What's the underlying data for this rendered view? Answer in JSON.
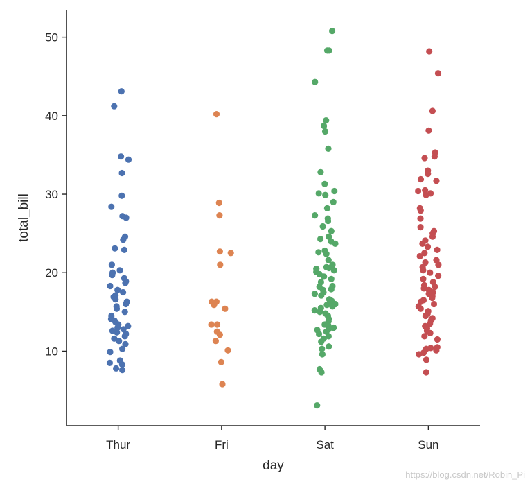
{
  "chart_data": {
    "type": "scatter",
    "subtype": "strip",
    "xlabel": "day",
    "ylabel": "total_bill",
    "ylim": [
      0.5,
      53.5
    ],
    "yticks": [
      10,
      20,
      30,
      40,
      50
    ],
    "grid": false,
    "legend": "none",
    "categories": [
      "Thur",
      "Fri",
      "Sat",
      "Sun"
    ],
    "colors": [
      "#4c72b0",
      "#dd8452",
      "#55a868",
      "#c44e52"
    ],
    "series": [
      {
        "values": [
          43.1,
          41.2,
          34.8,
          34.4,
          32.7,
          29.8,
          28.4,
          27.0,
          27.2,
          24.6,
          24.2,
          23.1,
          22.9,
          21.0,
          20.3,
          20.0,
          19.7,
          19.3,
          18.9,
          18.7,
          18.3,
          17.8,
          17.5,
          17.1,
          16.9,
          16.6,
          16.3,
          16.0,
          15.7,
          15.4,
          15.0,
          14.5,
          14.1,
          13.9,
          13.7,
          13.4,
          13.2,
          13.0,
          12.8,
          12.6,
          12.4,
          12.2,
          11.9,
          11.6,
          11.3,
          10.9,
          10.3,
          9.9,
          8.8,
          8.5,
          8.3,
          7.8,
          7.6
        ]
      },
      {
        "values": [
          40.2,
          28.9,
          27.3,
          22.7,
          22.5,
          21.0,
          16.3,
          16.3,
          15.9,
          15.4,
          13.4,
          13.4,
          12.5,
          12.1,
          11.3,
          10.1,
          8.6,
          5.8
        ]
      },
      {
        "values": [
          50.8,
          48.3,
          48.3,
          44.3,
          39.4,
          38.7,
          38.0,
          35.8,
          32.8,
          31.3,
          30.4,
          30.1,
          29.9,
          29.0,
          28.2,
          27.3,
          26.9,
          26.6,
          25.9,
          25.3,
          24.6,
          24.3,
          24.0,
          23.7,
          22.8,
          22.6,
          22.4,
          21.6,
          21.0,
          20.7,
          20.6,
          20.5,
          20.3,
          20.1,
          19.8,
          19.5,
          19.2,
          18.8,
          18.3,
          18.2,
          17.9,
          17.8,
          17.5,
          17.3,
          17.1,
          16.6,
          16.4,
          16.3,
          16.0,
          15.9,
          15.7,
          15.5,
          15.2,
          15.0,
          14.8,
          14.5,
          14.1,
          13.8,
          13.4,
          13.3,
          13.0,
          12.8,
          12.7,
          12.5,
          12.2,
          11.9,
          11.6,
          11.2,
          10.6,
          10.3,
          9.6,
          7.7,
          7.3,
          3.1
        ]
      },
      {
        "values": [
          48.2,
          45.4,
          40.6,
          38.1,
          35.3,
          34.8,
          34.6,
          33.0,
          32.6,
          31.9,
          31.7,
          30.5,
          30.4,
          30.1,
          29.9,
          28.2,
          27.9,
          26.9,
          25.8,
          25.3,
          25.0,
          24.6,
          24.1,
          23.7,
          23.3,
          22.9,
          22.5,
          22.1,
          21.6,
          21.3,
          21.0,
          20.7,
          20.3,
          20.0,
          19.6,
          19.2,
          18.8,
          18.4,
          18.2,
          18.0,
          17.8,
          17.5,
          17.3,
          17.0,
          16.8,
          16.5,
          16.3,
          16.0,
          15.7,
          15.4,
          15.1,
          14.8,
          14.5,
          14.2,
          13.9,
          13.5,
          13.2,
          12.9,
          12.6,
          12.3,
          11.9,
          11.5,
          10.5,
          10.4,
          10.3,
          10.1,
          9.8,
          9.6,
          8.9,
          7.3
        ]
      }
    ]
  },
  "watermark": "https://blog.csdn.net/Robin_Pi"
}
